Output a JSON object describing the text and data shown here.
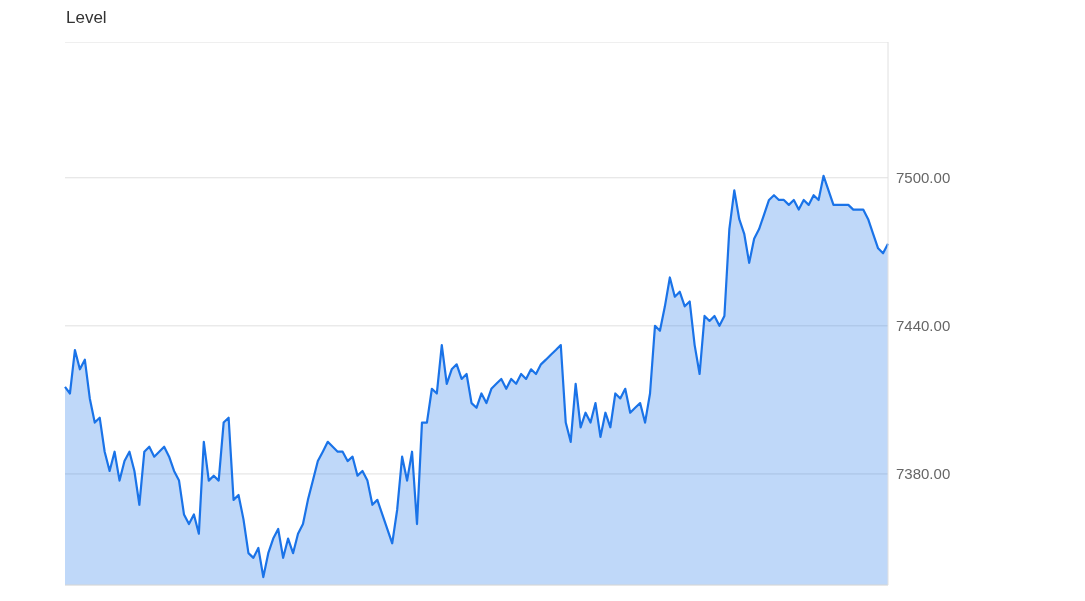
{
  "chart_data": {
    "type": "area",
    "title": "Level",
    "categories": [
      null,
      null,
      null,
      null,
      null,
      null,
      null,
      null,
      null,
      null,
      null,
      null,
      null,
      null,
      null,
      null,
      null,
      null,
      null,
      null,
      null,
      null,
      null,
      null,
      null,
      null,
      null,
      null,
      null,
      null,
      null,
      null,
      null,
      null,
      null,
      null,
      null,
      null,
      null,
      null,
      null,
      null,
      null,
      null,
      null,
      null,
      null,
      null,
      null,
      null,
      null,
      null,
      null,
      null,
      null,
      null,
      null,
      null,
      null,
      null,
      null,
      null,
      null,
      null,
      null,
      null,
      null,
      null,
      null,
      null,
      null,
      null,
      null,
      null,
      null,
      null,
      null,
      null,
      null,
      null,
      null,
      null,
      null,
      null,
      null,
      null,
      null,
      null,
      null,
      null,
      null,
      null,
      null,
      null,
      null,
      null,
      null,
      null,
      null,
      null,
      null,
      null,
      null,
      null,
      null,
      null,
      null,
      null,
      null,
      null,
      null,
      null,
      null,
      null,
      null,
      null,
      null,
      null,
      null,
      null,
      null,
      null,
      null,
      null,
      null,
      null,
      null,
      null,
      null,
      null,
      null,
      null,
      null,
      null,
      null,
      null,
      null,
      null,
      null,
      null,
      null,
      null,
      null,
      null,
      null,
      null,
      null,
      null,
      null,
      null,
      null,
      null,
      null,
      null,
      null,
      null,
      null,
      null,
      null,
      null,
      null,
      null,
      null,
      null,
      null,
      null,
      null
    ],
    "series": [
      {
        "color": "#1a73e8",
        "values": [
          7415.3,
          7412.6,
          7430.2,
          7422.4,
          7426.3,
          7410.6,
          7400.8,
          7402.8,
          7389,
          7381.2,
          7389,
          7377.3,
          7385.2,
          7389,
          7381.2,
          7367.5,
          7389,
          7391,
          7387,
          7389,
          7391,
          7387,
          7381.2,
          7377.3,
          7363.6,
          7359.7,
          7363.6,
          7355.8,
          7393,
          7377.3,
          7379.3,
          7377.3,
          7400.8,
          7402.8,
          7369.5,
          7371.5,
          7361.6,
          7347.9,
          7346,
          7350,
          7338.2,
          7347.9,
          7353.8,
          7357.7,
          7346,
          7353.8,
          7347.9,
          7355.8,
          7359.7,
          7369.5,
          7377.3,
          7385.2,
          7389,
          7393,
          7391,
          7389,
          7389,
          7385.2,
          7387,
          7379.3,
          7381.2,
          7377.3,
          7367.5,
          7369.5,
          7363.6,
          7357.7,
          7351.9,
          7365.5,
          7387,
          7377.3,
          7389,
          7359.7,
          7400.8,
          7400.8,
          7414.5,
          7412.6,
          7432.2,
          7416.5,
          7422.4,
          7424.4,
          7418.5,
          7420.5,
          7408.7,
          7406.8,
          7412.6,
          7408.7,
          7414.5,
          7416.5,
          7418.5,
          7414.5,
          7418.5,
          7416.5,
          7420.5,
          7418.5,
          7422.4,
          7420.5,
          7424.4,
          7426.3,
          7428.3,
          7430.2,
          7432.2,
          7400.8,
          7393,
          7416.5,
          7398.9,
          7404.8,
          7400.8,
          7408.7,
          7395,
          7404.8,
          7398.9,
          7412.6,
          7410.6,
          7414.5,
          7404.8,
          7406.8,
          7408.7,
          7400.8,
          7412.6,
          7440,
          7438,
          7447.9,
          7459.6,
          7451.8,
          7453.8,
          7447.9,
          7449.9,
          7432.2,
          7420.5,
          7444,
          7442,
          7444,
          7440,
          7444,
          7479.2,
          7494.9,
          7483.2,
          7477.3,
          7465.5,
          7475.3,
          7479.2,
          7485.1,
          7491,
          7492.9,
          7491,
          7491,
          7489,
          7491,
          7487.1,
          7491,
          7489,
          7492.9,
          7491,
          7500.8,
          7494.9,
          7489,
          7489,
          7489,
          7489,
          7487.1,
          7487.1,
          7487.1,
          7483.2,
          7477.3,
          7471.4,
          7469.4,
          7473.3
        ]
      }
    ],
    "ylim": [
      7335,
      7555
    ],
    "yticks": [
      {
        "value": 7380,
        "label": "7380.00"
      },
      {
        "value": 7440,
        "label": "7440.00"
      },
      {
        "value": 7500,
        "label": "7500.00"
      }
    ],
    "grid": "y",
    "tick_labels": "y",
    "marker": "none",
    "line_style": "solid"
  }
}
